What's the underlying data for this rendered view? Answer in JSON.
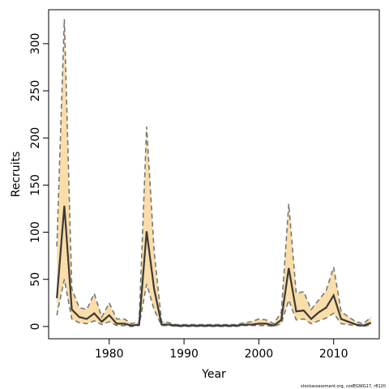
{
  "chart_data": {
    "type": "area",
    "title": "",
    "xlabel": "Year",
    "ylabel": "Recruits",
    "xlim": [
      1971.9,
      2016.1
    ],
    "ylim": [
      -13,
      336
    ],
    "x_ticks": [
      1980,
      1990,
      2000,
      2010
    ],
    "y_ticks": [
      0,
      50,
      100,
      150,
      200,
      250,
      300
    ],
    "grid": false,
    "legend": "none",
    "colors": {
      "band": "#fadda8",
      "median": "#3a3a3a",
      "bounds": "#777777",
      "frame": "#000000"
    },
    "x": [
      1973,
      1974,
      1975,
      1976,
      1977,
      1978,
      1979,
      1980,
      1981,
      1982,
      1983,
      1984,
      1985,
      1986,
      1987,
      1988,
      1989,
      1990,
      1991,
      1992,
      1993,
      1994,
      1995,
      1996,
      1997,
      1998,
      1999,
      2000,
      2001,
      2002,
      2003,
      2004,
      2005,
      2006,
      2007,
      2008,
      2009,
      2010,
      2011,
      2012,
      2013,
      2014,
      2015
    ],
    "series": [
      {
        "role": "upper",
        "values": [
          85,
          326,
          40,
          20,
          18,
          35,
          10,
          25,
          8,
          8,
          3,
          5,
          212,
          80,
          5,
          4,
          2,
          2,
          2,
          2,
          2,
          2,
          2,
          2,
          2,
          4,
          5,
          8,
          7,
          3,
          15,
          130,
          35,
          37,
          18,
          28,
          38,
          63,
          16,
          10,
          5,
          3,
          10
        ]
      },
      {
        "role": "median",
        "values": [
          30,
          128,
          18,
          10,
          8,
          14,
          5,
          12,
          3,
          3,
          1,
          2,
          101,
          40,
          2,
          2,
          1,
          1,
          1,
          1,
          1,
          1,
          1,
          1,
          1,
          2,
          2,
          3,
          3,
          1,
          7,
          62,
          16,
          17,
          8,
          15,
          20,
          33,
          8,
          5,
          2,
          1,
          4
        ]
      },
      {
        "role": "lower",
        "values": [
          12,
          50,
          8,
          4,
          3,
          6,
          2,
          5,
          1,
          1,
          0,
          1,
          45,
          18,
          1,
          1,
          0,
          0,
          0,
          0,
          0,
          0,
          0,
          0,
          0,
          1,
          1,
          1,
          1,
          0,
          3,
          28,
          7,
          8,
          3,
          6,
          9,
          14,
          3,
          2,
          1,
          0,
          2
        ]
      }
    ]
  },
  "footnote": "stockassessment.org, codEGWG17, r8120"
}
